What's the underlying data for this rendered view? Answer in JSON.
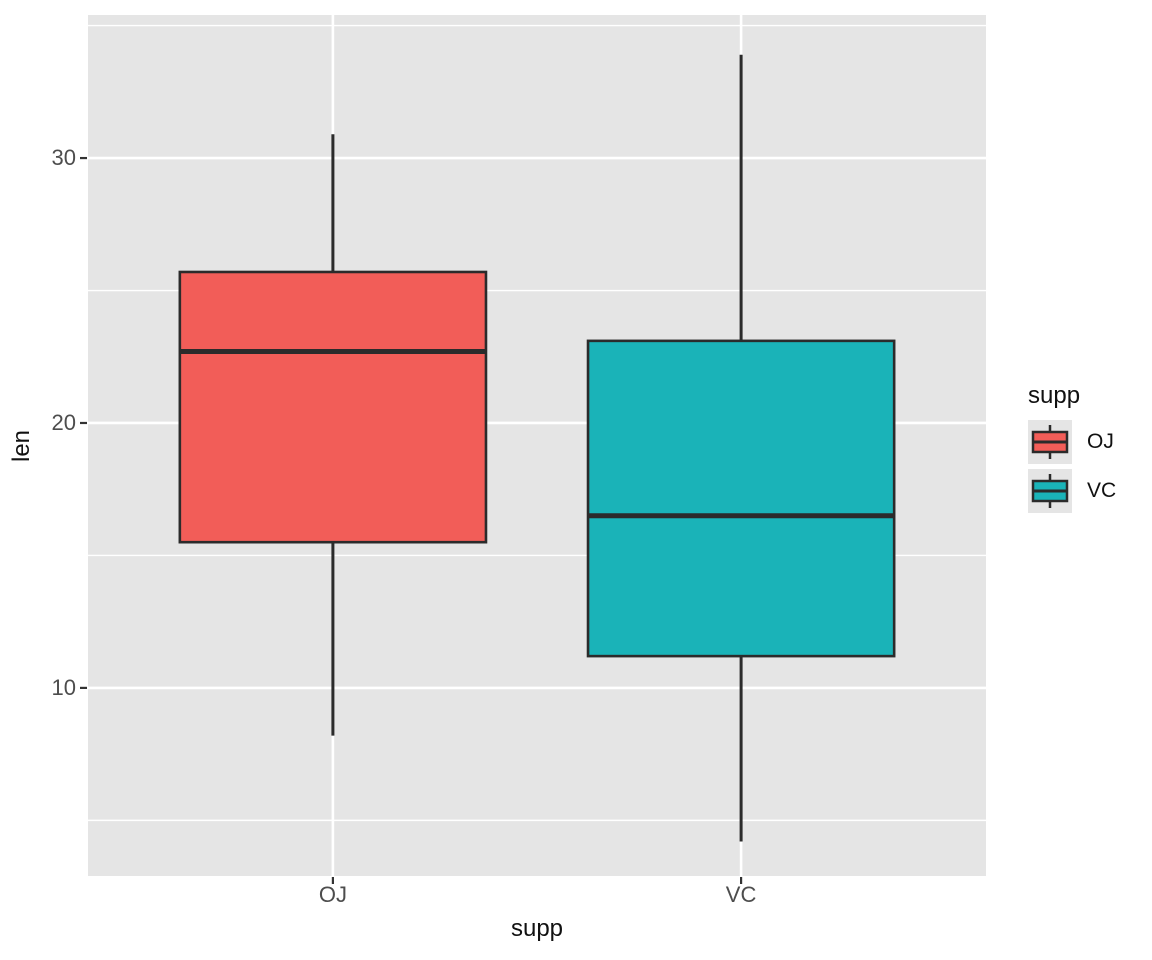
{
  "chart_data": {
    "type": "boxplot",
    "title": "",
    "xlabel": "supp",
    "ylabel": "len",
    "categories": [
      "OJ",
      "VC"
    ],
    "series": [
      {
        "name": "OJ",
        "min": 8.2,
        "q1": 15.5,
        "median": 22.7,
        "q3": 25.7,
        "max": 30.9,
        "fill": "#F25D58"
      },
      {
        "name": "VC",
        "min": 4.2,
        "q1": 11.2,
        "median": 16.5,
        "q3": 23.1,
        "max": 33.9,
        "fill": "#1AB3B8"
      }
    ],
    "y_ticks": [
      "10",
      "20",
      "30"
    ],
    "y_tick_values": [
      10,
      20,
      30
    ],
    "y_minor_values": [
      5,
      15,
      25,
      35
    ],
    "ylim": [
      2.9,
      35.4
    ],
    "grid": true,
    "legend": {
      "title": "supp",
      "position": "right",
      "entries": [
        {
          "label": "OJ",
          "color": "#F25D58"
        },
        {
          "label": "VC",
          "color": "#1AB3B8"
        }
      ]
    },
    "colors": {
      "panel_bg": "#E5E5E5",
      "grid": "#FFFFFF",
      "box_border": "#2B2B2B",
      "tick_mark": "#333333",
      "tick_label": "#4D4D4D"
    }
  }
}
